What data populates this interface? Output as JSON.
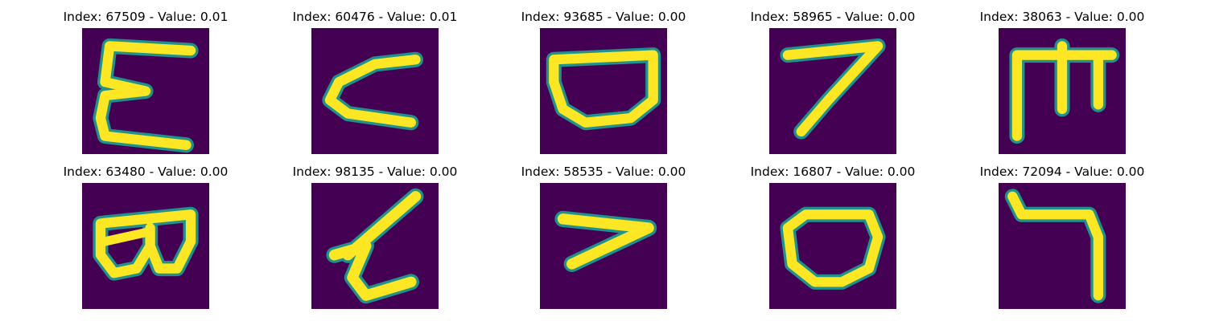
{
  "figure": {
    "panels": [
      {
        "title": "Index: 67509 - Value: 0.01",
        "glyph": "E-like"
      },
      {
        "title": "Index: 60476 - Value: 0.01",
        "glyph": "C-like"
      },
      {
        "title": "Index: 93685 - Value: 0.00",
        "glyph": "D-bowl"
      },
      {
        "title": "Index: 58965 - Value: 0.00",
        "glyph": "7-like"
      },
      {
        "title": "Index: 38063 - Value: 0.00",
        "glyph": "m-like"
      },
      {
        "title": "Index: 63480 - Value: 0.00",
        "glyph": "B-like"
      },
      {
        "title": "Index: 98135 - Value: 0.00",
        "glyph": "Z-like"
      },
      {
        "title": "Index: 58535 - Value: 0.00",
        "glyph": "7-sideways"
      },
      {
        "title": "Index: 16807 - Value: 0.00",
        "glyph": "O-bowl"
      },
      {
        "title": "Index: 72094 - Value: 0.00",
        "glyph": "hook"
      }
    ],
    "colors": {
      "background": "#440154",
      "stroke": "#fde725",
      "edge": "#21918c"
    }
  }
}
